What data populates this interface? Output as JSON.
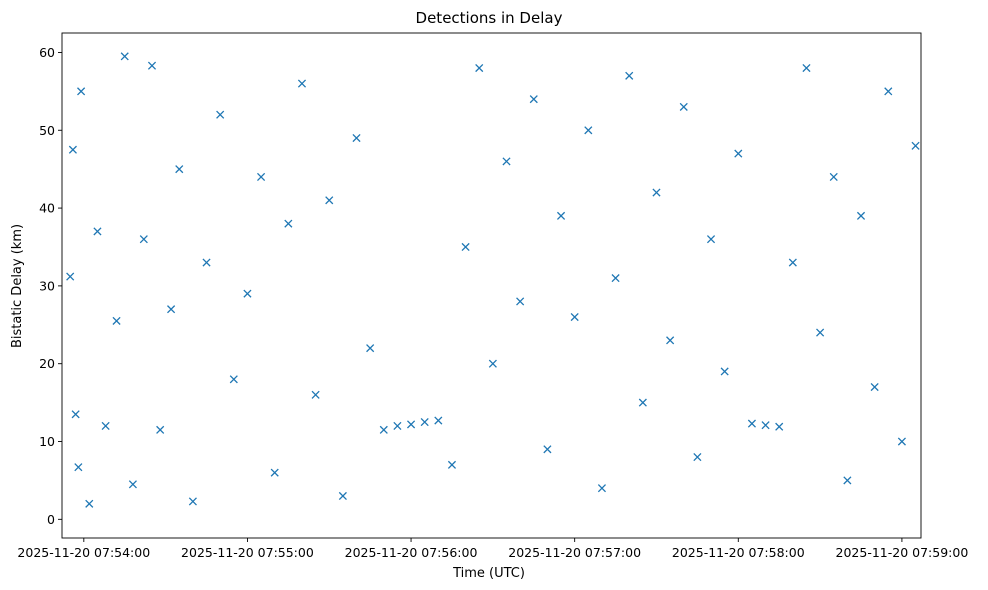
{
  "chart_data": {
    "type": "scatter",
    "title": "Detections in Delay",
    "xlabel": "Time (UTC)",
    "ylabel": "Bistatic Delay (km)",
    "marker": "x",
    "color": "#1f77b4",
    "grid": false,
    "legend": "none",
    "xlim": [
      "2025-11-20 07:53:52",
      "2025-11-20 07:59:07"
    ],
    "ylim": [
      -2.4,
      62.5
    ],
    "x_ticks": [
      "2025-11-20 07:54:00",
      "2025-11-20 07:55:00",
      "2025-11-20 07:56:00",
      "2025-11-20 07:57:00",
      "2025-11-20 07:58:00",
      "2025-11-20 07:59:00"
    ],
    "y_ticks": [
      0,
      10,
      20,
      30,
      40,
      50,
      60
    ],
    "x_tick_values": [
      "07:54:00",
      "07:55:00",
      "07:56:00",
      "07:57:00",
      "07:58:00",
      "07:59:00"
    ],
    "series": [
      {
        "description_start": "07:53:55",
        "description_end": "07:59:05",
        "points": [
          [
            "07:53:55",
            31.2
          ],
          [
            "07:53:56",
            47.5
          ],
          [
            "07:53:57",
            13.5
          ],
          [
            "07:53:58",
            6.7
          ],
          [
            "07:53:59",
            55.0
          ],
          [
            "07:54:02",
            2.0
          ],
          [
            "07:54:05",
            37.0
          ],
          [
            "07:54:08",
            12.0
          ],
          [
            "07:54:12",
            25.5
          ],
          [
            "07:54:15",
            59.5
          ],
          [
            "07:54:18",
            4.5
          ],
          [
            "07:54:22",
            36.0
          ],
          [
            "07:54:25",
            58.3
          ],
          [
            "07:54:28",
            11.5
          ],
          [
            "07:54:32",
            27.0
          ],
          [
            "07:54:35",
            45.0
          ],
          [
            "07:54:40",
            2.3
          ],
          [
            "07:54:45",
            33.0
          ],
          [
            "07:54:50",
            52.0
          ],
          [
            "07:54:55",
            18.0
          ],
          [
            "07:55:00",
            29.0
          ],
          [
            "07:55:05",
            44.0
          ],
          [
            "07:55:10",
            6.0
          ],
          [
            "07:55:15",
            38.0
          ],
          [
            "07:55:20",
            56.0
          ],
          [
            "07:55:25",
            16.0
          ],
          [
            "07:55:30",
            41.0
          ],
          [
            "07:55:35",
            3.0
          ],
          [
            "07:55:40",
            49.0
          ],
          [
            "07:55:45",
            22.0
          ],
          [
            "07:55:50",
            11.5
          ],
          [
            "07:55:55",
            12.0
          ],
          [
            "07:56:00",
            12.2
          ],
          [
            "07:56:05",
            12.5
          ],
          [
            "07:56:10",
            12.7
          ],
          [
            "07:56:15",
            7.0
          ],
          [
            "07:56:20",
            35.0
          ],
          [
            "07:56:25",
            58.0
          ],
          [
            "07:56:30",
            20.0
          ],
          [
            "07:56:35",
            46.0
          ],
          [
            "07:56:40",
            28.0
          ],
          [
            "07:56:45",
            54.0
          ],
          [
            "07:56:50",
            9.0
          ],
          [
            "07:56:55",
            39.0
          ],
          [
            "07:57:00",
            26.0
          ],
          [
            "07:57:05",
            50.0
          ],
          [
            "07:57:10",
            4.0
          ],
          [
            "07:57:15",
            31.0
          ],
          [
            "07:57:20",
            57.0
          ],
          [
            "07:57:25",
            15.0
          ],
          [
            "07:57:30",
            42.0
          ],
          [
            "07:57:35",
            23.0
          ],
          [
            "07:57:40",
            53.0
          ],
          [
            "07:57:45",
            8.0
          ],
          [
            "07:57:50",
            36.0
          ],
          [
            "07:57:55",
            19.0
          ],
          [
            "07:58:00",
            47.0
          ],
          [
            "07:58:05",
            12.3
          ],
          [
            "07:58:10",
            12.1
          ],
          [
            "07:58:15",
            11.9
          ],
          [
            "07:58:20",
            33.0
          ],
          [
            "07:58:25",
            58.0
          ],
          [
            "07:58:30",
            24.0
          ],
          [
            "07:58:35",
            44.0
          ],
          [
            "07:58:40",
            5.0
          ],
          [
            "07:58:45",
            39.0
          ],
          [
            "07:58:50",
            17.0
          ],
          [
            "07:58:55",
            55.0
          ],
          [
            "07:59:00",
            10.0
          ],
          [
            "07:59:05",
            48.0
          ]
        ]
      }
    ]
  }
}
